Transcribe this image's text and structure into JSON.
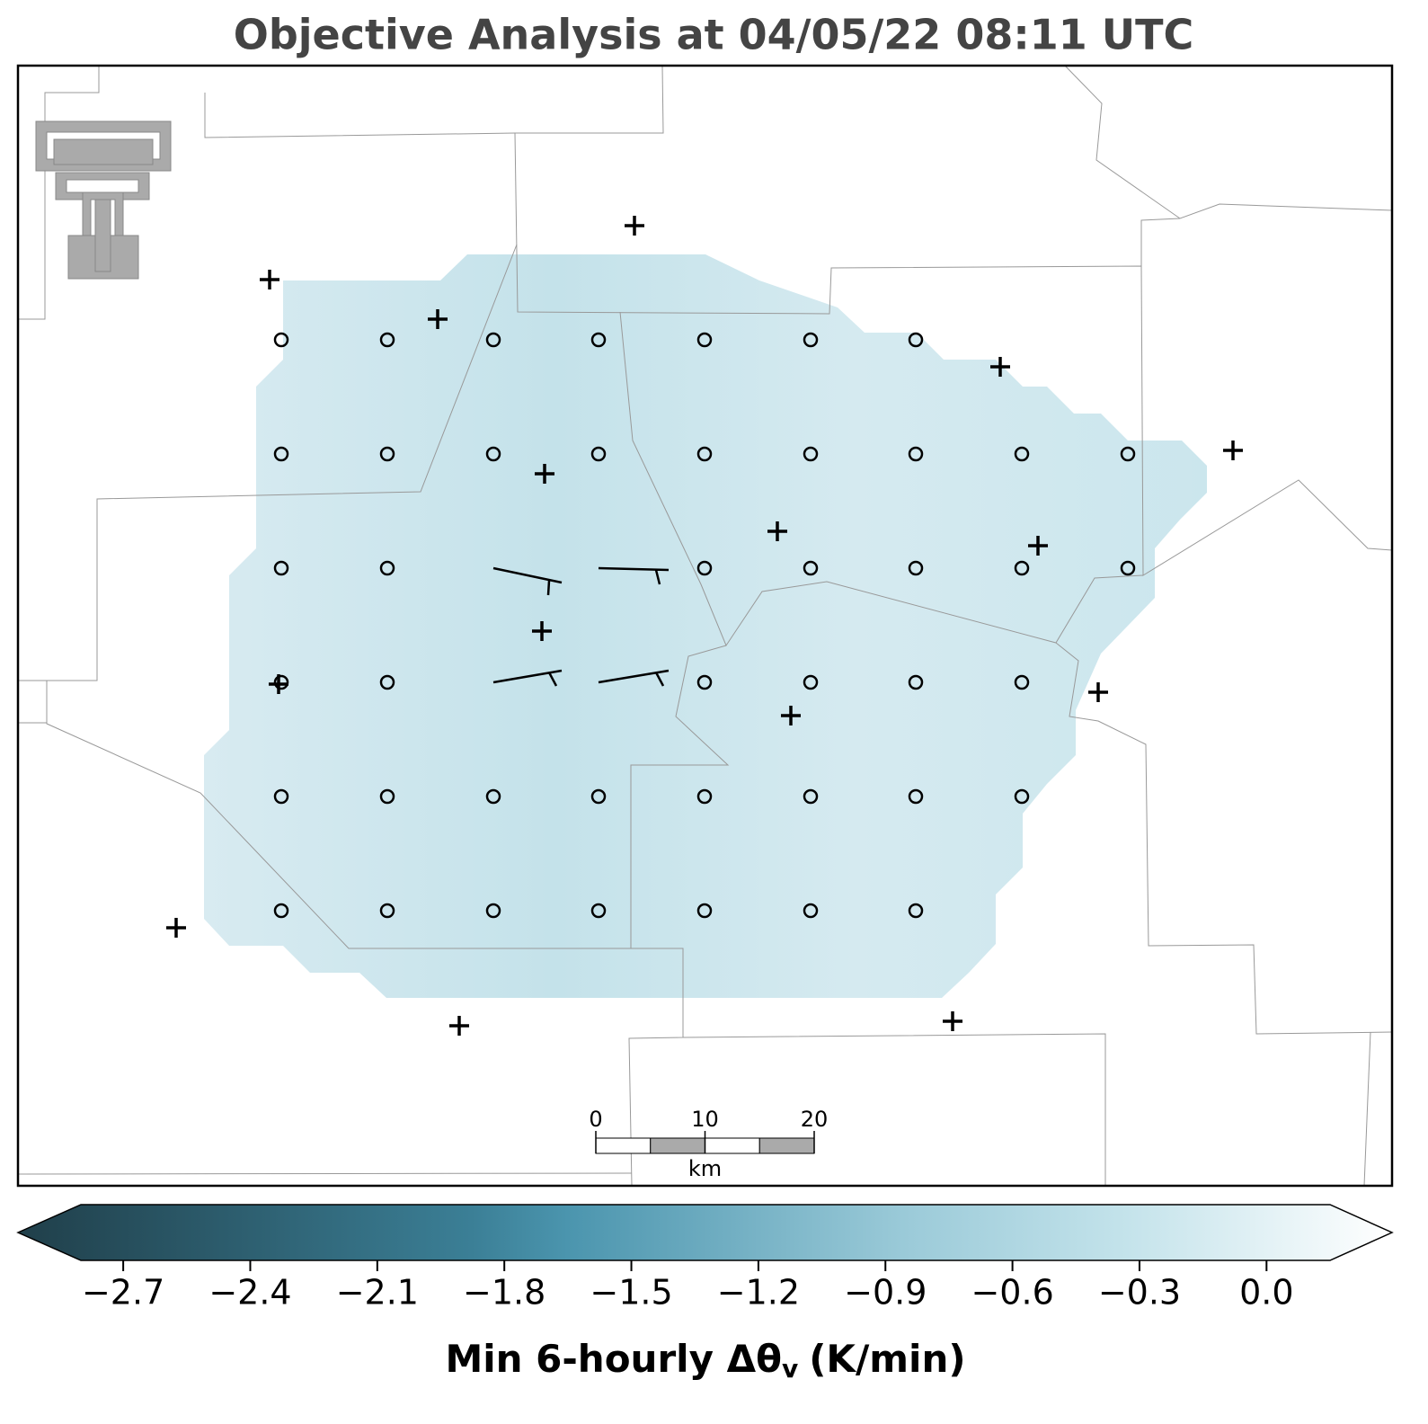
{
  "chart_data": {
    "type": "map",
    "title": "Objective Analysis at 04/05/22 08:11 UTC",
    "colorbar": {
      "clim": [
        -2.8,
        0.15
      ],
      "ticks": [
        {
          "value": -2.7,
          "label": "−2.7"
        },
        {
          "value": -2.4,
          "label": "−2.4"
        },
        {
          "value": -2.1,
          "label": "−2.1"
        },
        {
          "value": -1.8,
          "label": "−1.8"
        },
        {
          "value": -1.5,
          "label": "−1.5"
        },
        {
          "value": -1.2,
          "label": "−1.2"
        },
        {
          "value": -0.9,
          "label": "−0.9"
        },
        {
          "value": -0.6,
          "label": "−0.6"
        },
        {
          "value": -0.3,
          "label": "−0.3"
        },
        {
          "value": 0.0,
          "label": "0.0"
        }
      ],
      "label": "Min 6-hourly Δθ",
      "label_subscript": "v",
      "label_unit": "(K/min)"
    },
    "scale_bar": {
      "ticks": [
        0,
        10,
        20
      ],
      "unit": "km"
    }
  }
}
